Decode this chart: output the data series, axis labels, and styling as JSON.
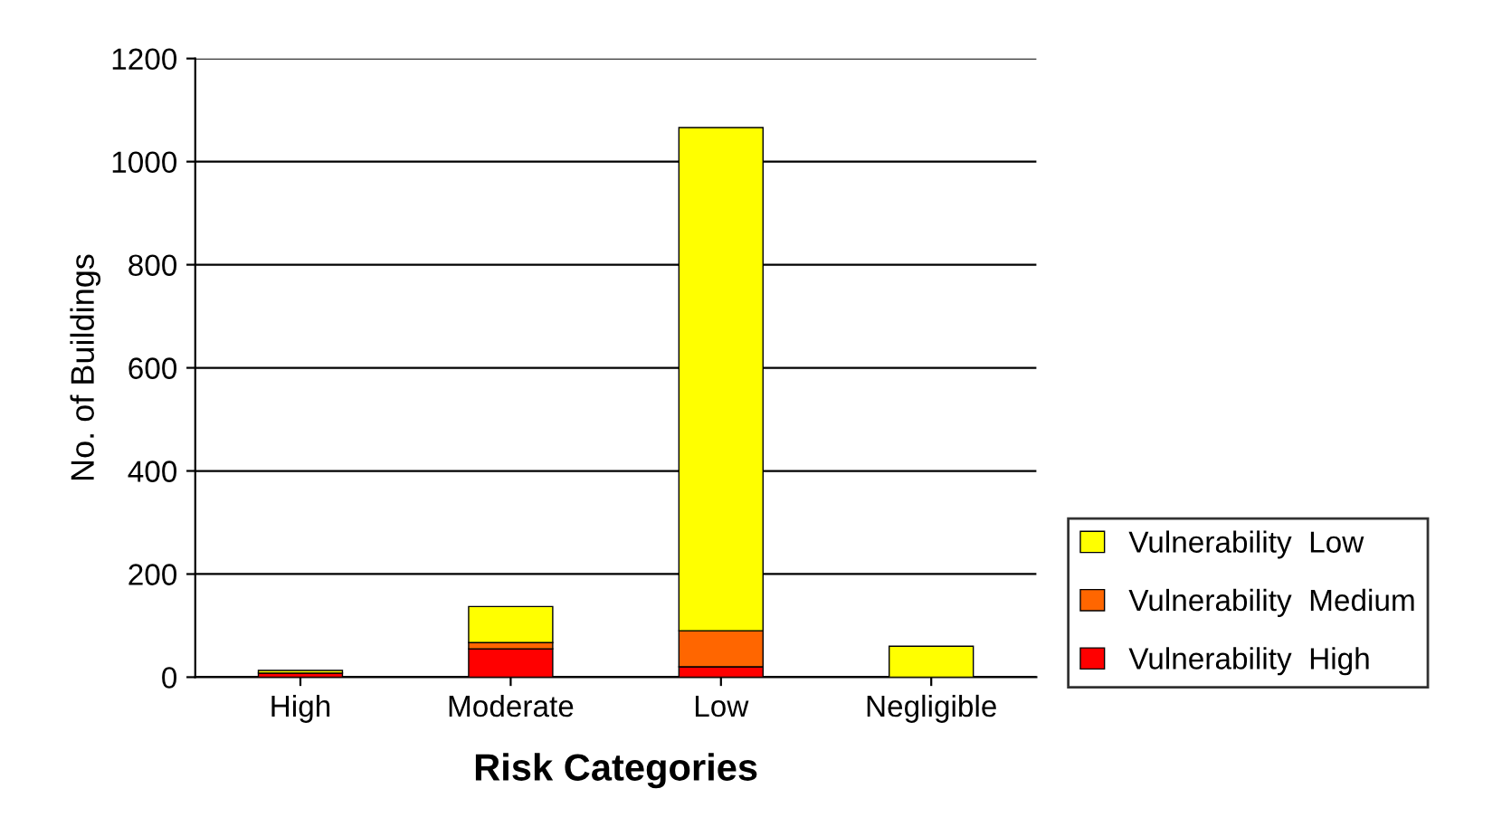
{
  "chart_data": {
    "type": "bar",
    "stacked": true,
    "xlabel": "Risk Categories",
    "ylabel": "No. of Buildings",
    "categories": [
      "High",
      "Moderate",
      "Low",
      "Negligible"
    ],
    "series": [
      {
        "name": "Vulnerability  High",
        "color": "#ff0000",
        "values": [
          8,
          55,
          20,
          0
        ]
      },
      {
        "name": "Vulnerability  Medium",
        "color": "#ff6600",
        "values": [
          null,
          12,
          70,
          0
        ]
      },
      {
        "name": "Vulnerability  Low",
        "color": "#ffff00",
        "values": [
          5,
          70,
          976,
          60
        ]
      }
    ],
    "ylim": [
      0,
      1200
    ],
    "yticks": [
      0,
      200,
      400,
      600,
      800,
      1000,
      1200
    ],
    "grid": "y",
    "legend": "right"
  }
}
